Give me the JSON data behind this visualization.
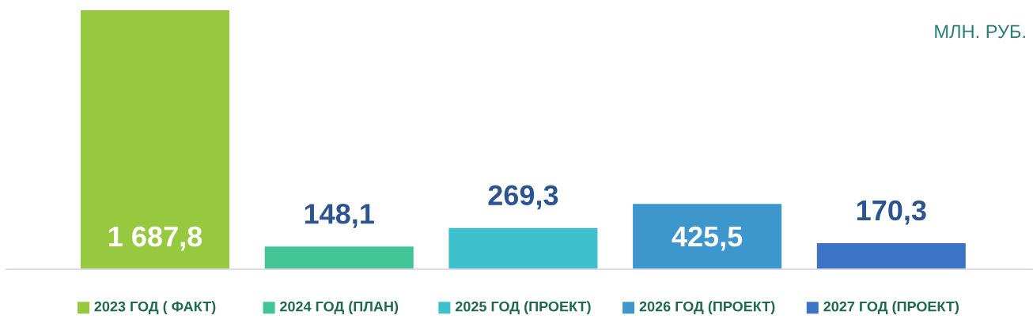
{
  "chart_data": {
    "type": "bar",
    "categories": [
      "2023 ГОД ( ФАКТ)",
      "2024 ГОД (ПЛАН)",
      "2025 ГОД (ПРОЕКТ)",
      "2026 ГОД (ПРОЕКТ)",
      "2027 ГОД (ПРОЕКТ)"
    ],
    "values": [
      1687.8,
      148.1,
      269.3,
      425.5,
      170.3
    ],
    "colors": [
      "#97c940",
      "#43c497",
      "#3ec1cc",
      "#3e97cc",
      "#3c73c4"
    ],
    "value_labels": [
      "1 687,8",
      "148,1",
      "269,3",
      "425,5",
      "170,3"
    ],
    "annotations": [
      "МЛН. РУБ."
    ],
    "tick_labels": "x"
  }
}
